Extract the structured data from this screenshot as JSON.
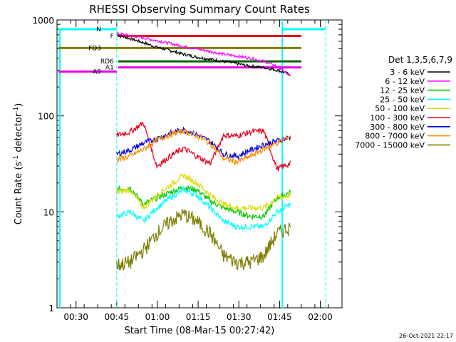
{
  "chart_data": {
    "type": "line",
    "title": "RHESSI Observing Summary Count Rates",
    "xlabel": "Start Time (08-Mar-15 00:27:42)",
    "ylabel_main": "Count Rate (s",
    "ylabel_sup": "-1",
    "ylabel_mid": " detector",
    "ylabel_sup2": "-1",
    "ylabel_end": ")",
    "yscale": "log",
    "ylim": [
      1,
      1000
    ],
    "xlim": [
      "00:23",
      "02:08"
    ],
    "x_ticks": [
      "00:30",
      "00:45",
      "01:00",
      "01:15",
      "01:30",
      "01:45",
      "02:00"
    ],
    "y_ticks": [
      "1",
      "10",
      "100",
      "1000"
    ],
    "legend_title": "Det 1,3,5,6,7,9",
    "timestamp": "26-Oct-2021 22:17",
    "flags": [
      {
        "label": "F",
        "color": "#e8001c",
        "level": 680
      },
      {
        "label": "N",
        "color": "#00ffff",
        "level": 800
      },
      {
        "label": "FD3",
        "color": "#7d7d00",
        "level": 510
      },
      {
        "label": "RD6",
        "color": "#006400",
        "level": 370
      },
      {
        "label": "A0",
        "color": "#e800e8",
        "level": 290
      },
      {
        "label": "A1",
        "color": "#e800e8",
        "level": 320
      }
    ],
    "series": [
      {
        "name": "3 - 6 keV",
        "color": "#000000",
        "values": [
          700,
          640,
          580,
          520,
          480,
          440,
          410,
          390,
          370,
          350,
          330,
          320,
          300,
          270
        ]
      },
      {
        "name": "6 - 12 keV",
        "color": "#ff00ff",
        "values": [
          720,
          690,
          650,
          610,
          570,
          530,
          500,
          470,
          440,
          420,
          400,
          370,
          330,
          260
        ]
      },
      {
        "name": "12 - 25 keV",
        "color": "#00cc00",
        "values": [
          17,
          18,
          12,
          14,
          16,
          18,
          17,
          13,
          11,
          10,
          9,
          9,
          14,
          16
        ]
      },
      {
        "name": "25 - 50 keV",
        "color": "#00ffff",
        "values": [
          9,
          10,
          8,
          11,
          14,
          17,
          15,
          11,
          8,
          7,
          7,
          7,
          10,
          12
        ]
      },
      {
        "name": "50 - 100 keV",
        "color": "#dcdc00",
        "values": [
          16,
          17,
          11,
          15,
          19,
          24,
          20,
          15,
          12,
          11,
          11,
          11,
          14,
          15
        ]
      },
      {
        "name": "100 - 300 keV",
        "color": "#e8001c",
        "values": [
          63,
          68,
          85,
          30,
          38,
          46,
          38,
          32,
          63,
          62,
          68,
          70,
          28,
          32
        ]
      },
      {
        "name": "300 - 800 keV",
        "color": "#0000dd",
        "values": [
          40,
          44,
          52,
          58,
          66,
          72,
          64,
          54,
          40,
          38,
          44,
          50,
          55,
          60
        ]
      },
      {
        "name": "800 - 7000 keV",
        "color": "#ff8c00",
        "values": [
          35,
          38,
          45,
          56,
          64,
          70,
          62,
          52,
          36,
          33,
          38,
          45,
          52,
          62
        ]
      },
      {
        "name": "7000 - 15000 keV",
        "color": "#7d7d00",
        "values": [
          2.8,
          3.0,
          4.0,
          6.0,
          8.0,
          9.5,
          8.0,
          6.0,
          3.5,
          3.0,
          3.0,
          3.5,
          6.0,
          7.0
        ]
      }
    ]
  }
}
